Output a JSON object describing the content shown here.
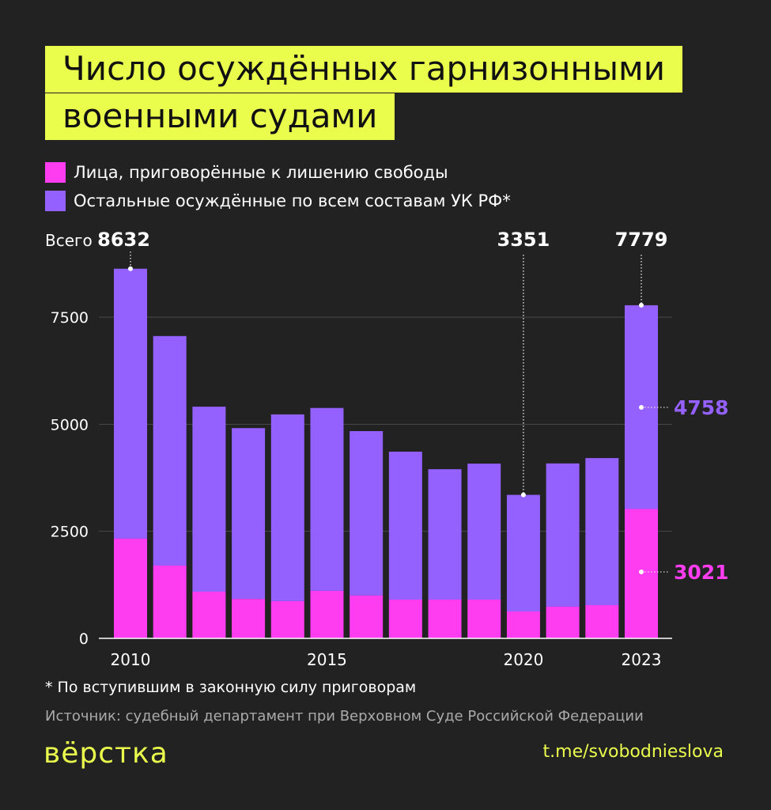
{
  "title": "Число осуждённых гарнизонными военными судами",
  "title_lines": [
    "Число осуждённых гарнизонными",
    "военными судами"
  ],
  "colors": {
    "background": "#222222",
    "accent": "#eafc4c",
    "imprisoned": "#ff3df0",
    "others": "#9461ff"
  },
  "chart_data": {
    "type": "bar",
    "stacked": true,
    "categories": [
      "2010",
      "2011",
      "2012",
      "2013",
      "2014",
      "2015",
      "2016",
      "2017",
      "2018",
      "2019",
      "2020",
      "2021",
      "2022",
      "2023"
    ],
    "series": [
      {
        "name": "Лица, приговорённые к лишению свободы",
        "color": "#ff3df0",
        "values": [
          2330,
          1700,
          1090,
          920,
          870,
          1110,
          1000,
          905,
          905,
          905,
          628,
          740,
          775,
          3021
        ]
      },
      {
        "name": "Остальные осуждённые по всем составам УК РФ*",
        "color": "#9461ff",
        "values": [
          6302,
          5360,
          4320,
          3990,
          4360,
          4270,
          3840,
          3455,
          3045,
          3175,
          2723,
          3345,
          3435,
          4758
        ]
      }
    ],
    "totals": [
      8632,
      7060,
      5410,
      4910,
      5230,
      5380,
      4840,
      4360,
      3950,
      4080,
      3351,
      4085,
      4210,
      7779
    ],
    "ylim": [
      0,
      8632
    ],
    "yticks": [
      "0",
      "2500",
      "5000",
      "7500"
    ],
    "xticks": [
      "2010",
      "2015",
      "2020",
      "2023"
    ],
    "grid": true,
    "annotations": {
      "total_prefix": "Всего",
      "total_2010": "8632",
      "total_2020": "3351",
      "total_2023": "7779",
      "others_2023": "4758",
      "imprisoned_2023": "3021"
    },
    "legend_position": "top-left"
  },
  "footnote": "По вступившим в законную силу приговорам",
  "footnote_mark": "*",
  "source": "Источник: судебный департамент при Верховном Суде Российской Федерации",
  "logo": "вёрстка",
  "telegram": "t.me/svobodnieslova"
}
